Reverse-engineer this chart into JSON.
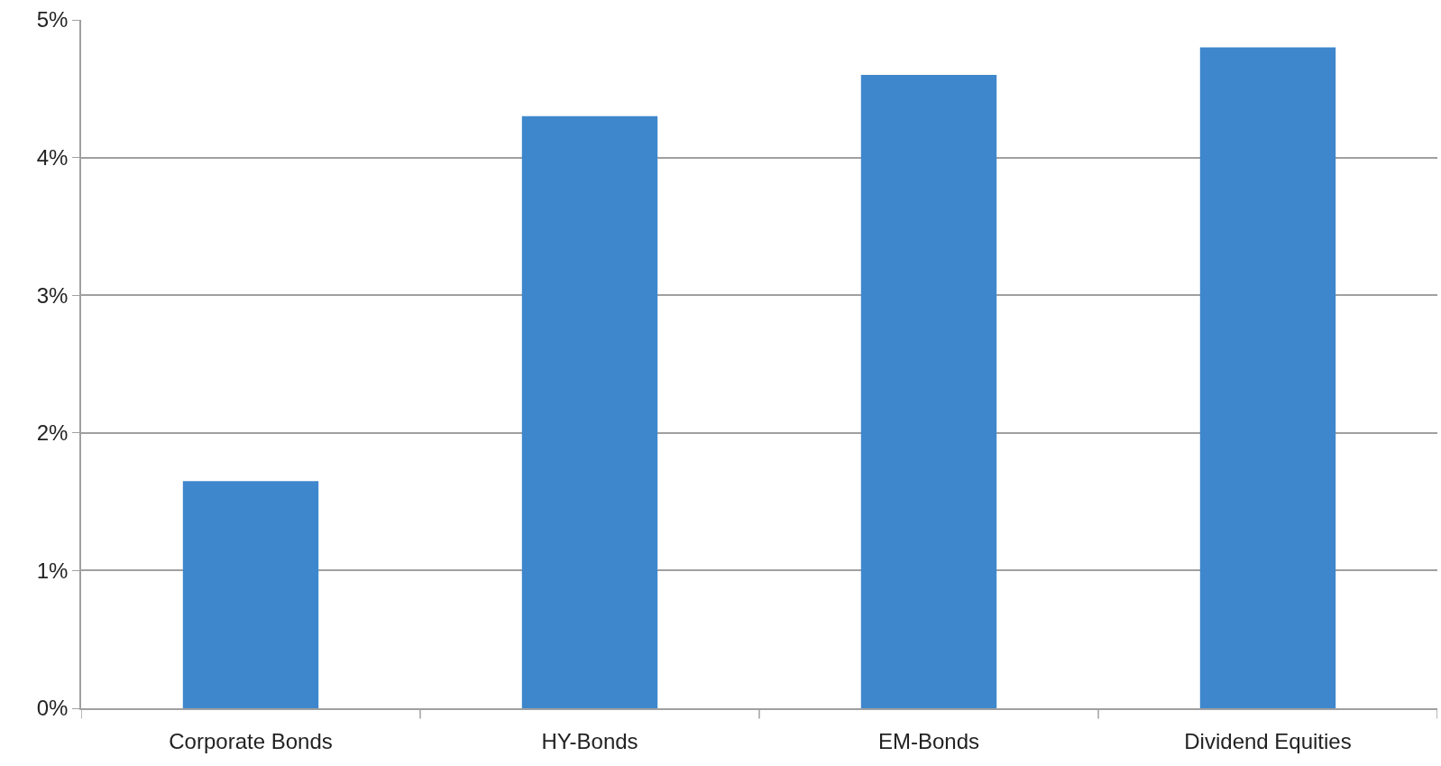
{
  "chart_data": {
    "type": "bar",
    "categories": [
      "Corporate Bonds",
      "HY-Bonds",
      "EM-Bonds",
      "Dividend Equities"
    ],
    "values": [
      1.65,
      4.3,
      4.6,
      4.8
    ],
    "color": "#3f87cc",
    "ylim": [
      0,
      5
    ],
    "yticks": [
      {
        "value": 0,
        "label": "0%"
      },
      {
        "value": 1,
        "label": "1%"
      },
      {
        "value": 2,
        "label": "2%"
      },
      {
        "value": 3,
        "label": "3%"
      },
      {
        "value": 4,
        "label": "4%"
      },
      {
        "value": 5,
        "label": "5%"
      }
    ],
    "grid": "y"
  }
}
